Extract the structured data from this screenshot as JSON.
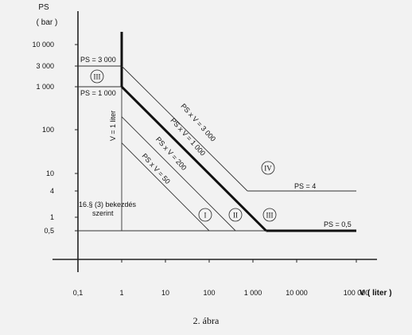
{
  "chart_data": {
    "type": "line",
    "x_scale": "log",
    "y_scale": "log",
    "y_axis": {
      "label": "PS",
      "unit": "( bar )",
      "ticks": [
        {
          "value": 0.5,
          "label": "0,5"
        },
        {
          "value": 1,
          "label": "1"
        },
        {
          "value": 4,
          "label": "4"
        },
        {
          "value": 10,
          "label": "10"
        },
        {
          "value": 100,
          "label": "100"
        },
        {
          "value": 1000,
          "label": "1 000"
        },
        {
          "value": 3000,
          "label": "3 000"
        },
        {
          "value": 10000,
          "label": "10 000"
        }
      ]
    },
    "x_axis": {
      "label": "V",
      "unit": "( liter )",
      "ticks": [
        {
          "value": 0.1,
          "label": "0,1"
        },
        {
          "value": 1,
          "label": "1"
        },
        {
          "value": 10,
          "label": "10"
        },
        {
          "value": 100,
          "label": "100"
        },
        {
          "value": 1000,
          "label": "1 000"
        },
        {
          "value": 10000,
          "label": "10 000"
        },
        {
          "value": 100000,
          "label": "100 000"
        }
      ]
    },
    "lines": [
      {
        "id": "ps-0-5",
        "weight": "thin",
        "points": [
          [
            0.1,
            0.5
          ],
          [
            10000,
            0.5
          ]
        ]
      },
      {
        "id": "ps-0-5-bold",
        "weight": "bold",
        "points": [
          [
            2000,
            0.5
          ],
          [
            100000,
            0.5
          ]
        ]
      },
      {
        "id": "ps-4",
        "weight": "thin",
        "points": [
          [
            750,
            4
          ],
          [
            100000,
            4
          ]
        ]
      },
      {
        "id": "ps-3000",
        "weight": "thin",
        "points": [
          [
            0.1,
            3000
          ],
          [
            1,
            3000
          ]
        ]
      },
      {
        "id": "ps-1000",
        "weight": "thin",
        "points": [
          [
            0.1,
            1000
          ],
          [
            1,
            1000
          ]
        ]
      },
      {
        "id": "v-1",
        "weight": "bold",
        "points": [
          [
            1,
            20000
          ],
          [
            1,
            1000
          ]
        ]
      },
      {
        "id": "v-1-thin",
        "weight": "thin",
        "points": [
          [
            1,
            1000
          ],
          [
            1,
            0.5
          ]
        ]
      },
      {
        "id": "psv-3000",
        "weight": "thin",
        "points": [
          [
            1,
            3000
          ],
          [
            750,
            4
          ]
        ]
      },
      {
        "id": "psv-1000",
        "weight": "bold",
        "points": [
          [
            1,
            1000
          ],
          [
            2000,
            0.5
          ]
        ]
      },
      {
        "id": "psv-200",
        "weight": "thin",
        "points": [
          [
            1,
            200
          ],
          [
            400,
            0.5
          ]
        ]
      },
      {
        "id": "psv-50",
        "weight": "thin",
        "points": [
          [
            1,
            50
          ],
          [
            100,
            0.5
          ]
        ]
      }
    ],
    "annotations": [
      {
        "text": "PS = 3 000",
        "x": 1,
        "y": 3000
      },
      {
        "text": "PS = 1 000",
        "x": 1,
        "y": 1000
      },
      {
        "text": "V = 1 liter",
        "x": 1,
        "y": 200
      },
      {
        "text": "PS x V = 3 000",
        "x": 30,
        "y": 100
      },
      {
        "text": "PS x V = 1 000",
        "x": 25,
        "y": 40
      },
      {
        "text": "PS x V = 200",
        "x": 12,
        "y": 17
      },
      {
        "text": "PS x V = 50",
        "x": 8,
        "y": 6
      },
      {
        "text": "PS = 4",
        "x": 8000,
        "y": 4
      },
      {
        "text": "PS = 0,5",
        "x": 20000,
        "y": 0.5
      },
      {
        "text": "16.§ (3) bekezdés",
        "x": 8,
        "y": 2
      },
      {
        "text": "szerint",
        "x": 8,
        "y": 1.2
      }
    ],
    "regions": [
      {
        "label": "I",
        "x": 100,
        "y": 1
      },
      {
        "label": "II",
        "x": 400,
        "y": 1
      },
      {
        "label": "III",
        "x": 2000,
        "y": 1
      },
      {
        "label": "III",
        "x": 0.5,
        "y": 1700
      },
      {
        "label": "IV",
        "x": 2000,
        "y": 10
      }
    ]
  },
  "caption": "2.  ábra"
}
